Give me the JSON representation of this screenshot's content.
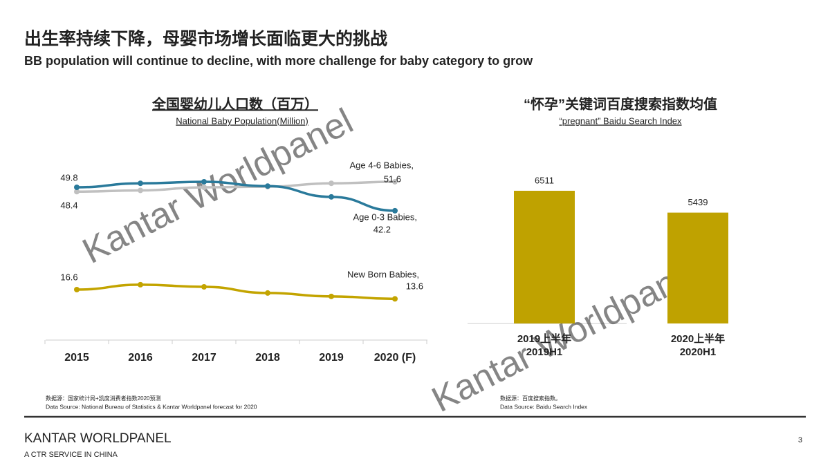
{
  "title": "出生率持续下降，母婴市场增长面临更大的挑战",
  "subtitle": "BB population will continue to decline, with more challenge for baby category to grow",
  "chart_data": [
    {
      "type": "line",
      "title": "全国婴幼儿人口数（百万）",
      "subtitle": "National Baby Population(Million)",
      "categories": [
        "2015",
        "2016",
        "2017",
        "2018",
        "2019",
        "2020 (F)"
      ],
      "series": [
        {
          "name": "Age 4-6 Babies,",
          "color": "#c0c0c0",
          "values": [
            48.4,
            48.8,
            49.8,
            50.0,
            51.1,
            51.6
          ]
        },
        {
          "name": "Age 0-3 Babies,",
          "color": "#2a7a9b",
          "values": [
            49.8,
            51.1,
            51.6,
            50.2,
            46.7,
            42.2
          ]
        },
        {
          "name": "New Born Babies,",
          "color": "#c3a400",
          "values": [
            16.6,
            18.2,
            17.5,
            15.5,
            14.4,
            13.6
          ]
        }
      ],
      "source_cn": "数据源：国家统计局+凯度消费者指数2020预测",
      "source_en": "Data Source: National Bureau of Statistics & Kantar Worldpanel forecast for 2020"
    },
    {
      "type": "bar",
      "title": "“怀孕”关键词百度搜索指数均值",
      "subtitle": "“pregnant” Baidu Search Index",
      "categories": [
        "2019上半年",
        "2020上半年"
      ],
      "categories_en": [
        "2019H1",
        "2020H1"
      ],
      "values": [
        6511,
        5439
      ],
      "color": "#bfa200",
      "source_cn": "数据源：百度搜索指数。",
      "source_en": "Data Source: Baidu Search Index"
    }
  ],
  "footer": {
    "brand": "KANTAR WORLDPANEL",
    "tagline": "A CTR SERVICE IN CHINA",
    "page": "3"
  },
  "watermark": "Kantar Worldpanel"
}
